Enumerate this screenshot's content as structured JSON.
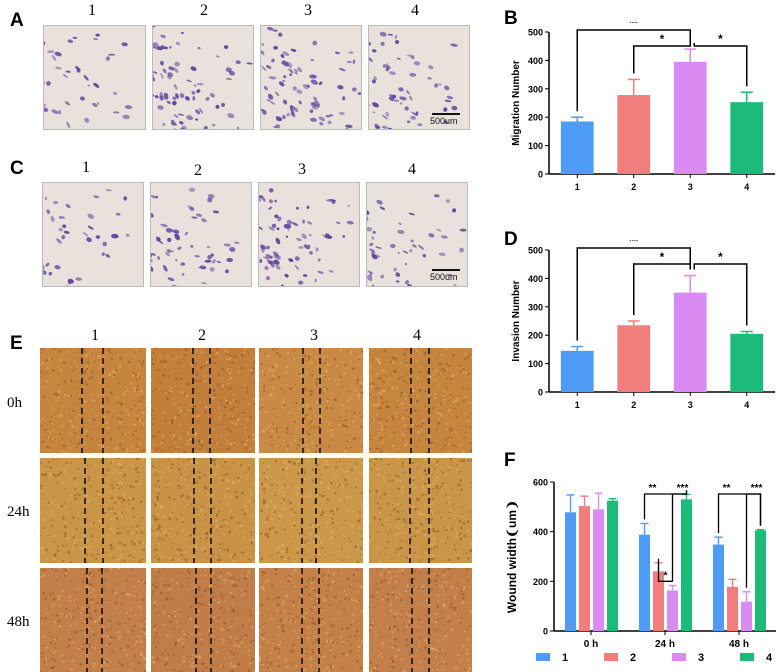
{
  "panels": {
    "A": "A",
    "B": "B",
    "C": "C",
    "D": "D",
    "E": "E",
    "F": "F"
  },
  "column_labels": [
    "1",
    "2",
    "3",
    "4"
  ],
  "scale_bar_A": "500um",
  "scale_bar_C": "500um",
  "wound_rows": [
    "0h",
    "24h",
    "48h"
  ],
  "colors": {
    "g1": "#4e9cf5",
    "g2": "#f27d7d",
    "g3": "#d98bf2",
    "g4": "#1dbb7a",
    "stain": "#5b3c9b",
    "wound": "#c98a3c"
  },
  "chart_data": [
    {
      "id": "B",
      "type": "bar",
      "title": "",
      "xlabel": "",
      "ylabel": "Migration Number",
      "categories": [
        "1",
        "2",
        "3",
        "4"
      ],
      "values": [
        185,
        278,
        395,
        253
      ],
      "errors": [
        15,
        55,
        45,
        35
      ],
      "ylim": [
        0,
        500
      ],
      "yticks": [
        0,
        100,
        200,
        300,
        400,
        500
      ],
      "significance": [
        {
          "from": "1",
          "to": "3",
          "label": "**"
        },
        {
          "from": "2",
          "to": "3",
          "label": "*"
        },
        {
          "from": "3",
          "to": "4",
          "label": "*"
        }
      ]
    },
    {
      "id": "D",
      "type": "bar",
      "title": "",
      "xlabel": "",
      "ylabel": "Invasion Number",
      "categories": [
        "1",
        "2",
        "3",
        "4"
      ],
      "values": [
        145,
        235,
        350,
        205
      ],
      "errors": [
        15,
        15,
        60,
        8
      ],
      "ylim": [
        0,
        500
      ],
      "yticks": [
        0,
        100,
        200,
        300,
        400,
        500
      ],
      "significance": [
        {
          "from": "1",
          "to": "3",
          "label": "**"
        },
        {
          "from": "2",
          "to": "3",
          "label": "*"
        },
        {
          "from": "3",
          "to": "4",
          "label": "*"
        }
      ]
    },
    {
      "id": "F",
      "type": "bar",
      "title": "",
      "xlabel": "",
      "ylabel": "Wound width❨um❩",
      "categories": [
        "0 h",
        "24 h",
        "48 h"
      ],
      "series": [
        {
          "name": "1",
          "values": [
            478,
            388,
            348
          ],
          "errors": [
            70,
            45,
            30
          ]
        },
        {
          "name": "2",
          "values": [
            503,
            240,
            178
          ],
          "errors": [
            40,
            35,
            30
          ]
        },
        {
          "name": "3",
          "values": [
            490,
            163,
            118
          ],
          "errors": [
            65,
            20,
            40
          ]
        },
        {
          "name": "4",
          "values": [
            525,
            530,
            405
          ],
          "errors": [
            8,
            20,
            3
          ]
        }
      ],
      "ylim": [
        0,
        600
      ],
      "yticks": [
        0,
        200,
        400,
        600
      ],
      "legend": "bottom",
      "significance": [
        {
          "group": "24 h",
          "from": "1",
          "to": "4",
          "label": "**"
        },
        {
          "group": "24 h",
          "from": "3",
          "to": "4",
          "label": "***"
        },
        {
          "group": "24 h",
          "from": "2",
          "to": "3",
          "label": "*"
        },
        {
          "group": "48 h",
          "from": "1",
          "to": "4",
          "label": "**"
        },
        {
          "group": "48 h",
          "from": "3",
          "to": "4",
          "label": "***"
        }
      ]
    }
  ]
}
